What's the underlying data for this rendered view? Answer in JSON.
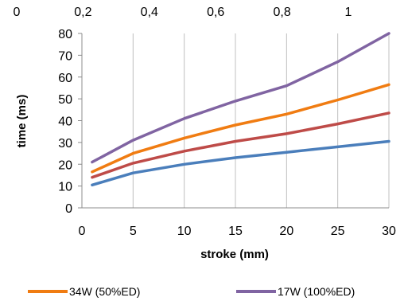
{
  "chart_data": {
    "type": "line",
    "title": "",
    "xlabel": "stroke (mm)",
    "ylabel": "time (ms)",
    "xlim": [
      0,
      30
    ],
    "ylim": [
      0,
      80
    ],
    "x_ticks": [
      0,
      5,
      10,
      15,
      20,
      25,
      30
    ],
    "y_ticks": [
      0,
      10,
      20,
      30,
      40,
      50,
      60,
      70,
      80
    ],
    "secondary_x": {
      "range": [
        0,
        1.2
      ],
      "ticks": [
        0,
        0.2,
        0.4,
        0.6,
        0.8,
        1.0
      ],
      "tick_labels": [
        "0",
        "0,2",
        "0,4",
        "0,6",
        "0,8",
        "1"
      ]
    },
    "grid": {
      "vertical": true,
      "horizontal": false
    },
    "legend_position": "bottom",
    "series": [
      {
        "name": "",
        "color": "#4a7ebb",
        "x": [
          1,
          5,
          10,
          15,
          20,
          25,
          30
        ],
        "y": [
          10.5,
          16,
          20,
          23,
          25.5,
          28,
          30.5
        ]
      },
      {
        "name": "",
        "color": "#be4b48",
        "x": [
          1,
          5,
          10,
          15,
          20,
          25,
          30
        ],
        "y": [
          14,
          20.5,
          26,
          30.5,
          34,
          38.5,
          43.5
        ]
      },
      {
        "name": "34W (50%ED)",
        "color": "#f07c12",
        "x": [
          1,
          5,
          10,
          15,
          20,
          25,
          30
        ],
        "y": [
          16.5,
          25,
          32,
          38,
          43,
          49.5,
          56.5
        ]
      },
      {
        "name": "17W (100%ED)",
        "color": "#8064a2",
        "x": [
          1,
          5,
          10,
          15,
          20,
          25,
          30
        ],
        "y": [
          21,
          31,
          41,
          49,
          56,
          67,
          80
        ]
      }
    ]
  }
}
